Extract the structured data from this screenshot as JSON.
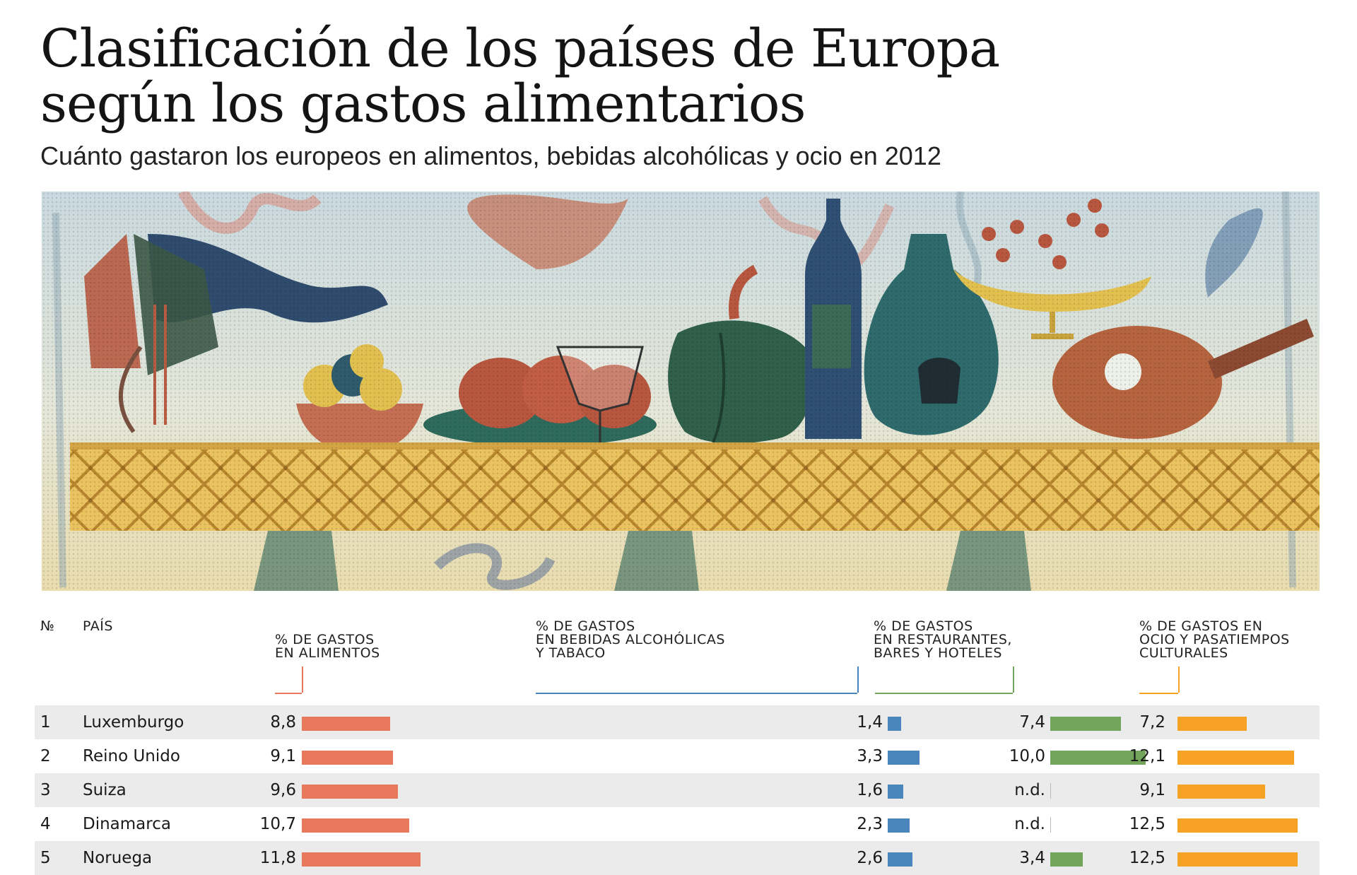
{
  "title_line1": "Clasificación de los países de Europa",
  "title_line2": "según los gastos alimentarios",
  "subtitle": "Cuánto gastaron los europeos en alimentos, bebidas alcohólicas y ocio en 2012",
  "colors": {
    "alimentos": "#e8795c",
    "alcohol": "#4a86bb",
    "restaurantes": "#72a55b",
    "ocio": "#f8a225"
  },
  "chart_data": {
    "type": "table",
    "columns": {
      "num": "№",
      "pais": "PAÍS",
      "alimentos": "% DE GASTOS\nEN ALIMENTOS",
      "alcohol": "% DE GASTOS\nEN BEBIDAS ALCOHÓLICAS\nY TABACO",
      "restaurantes": "% DE GASTOS\nEN RESTAURANTES,\nBARES Y HOTELES",
      "ocio": "% DE GASTOS EN\nOCIO Y PASATIEMPOS\nCULTURALES"
    },
    "rows": [
      {
        "rank": "1",
        "country": "Luxemburgo",
        "alimentos": 8.8,
        "alcohol": 1.4,
        "restaurantes": 7.4,
        "ocio": 7.2
      },
      {
        "rank": "2",
        "country": "Reino Unido",
        "alimentos": 9.1,
        "alcohol": 3.3,
        "restaurantes": 10.0,
        "ocio": 12.1
      },
      {
        "rank": "3",
        "country": "Suiza",
        "alimentos": 9.6,
        "alcohol": 1.6,
        "restaurantes": null,
        "ocio": 9.1
      },
      {
        "rank": "4",
        "country": "Dinamarca",
        "alimentos": 10.7,
        "alcohol": 2.3,
        "restaurantes": null,
        "ocio": 12.5
      },
      {
        "rank": "5",
        "country": "Noruega",
        "alimentos": 11.8,
        "alcohol": 2.6,
        "restaurantes": 3.4,
        "ocio": 12.5
      }
    ],
    "missing_label": "n.d."
  }
}
